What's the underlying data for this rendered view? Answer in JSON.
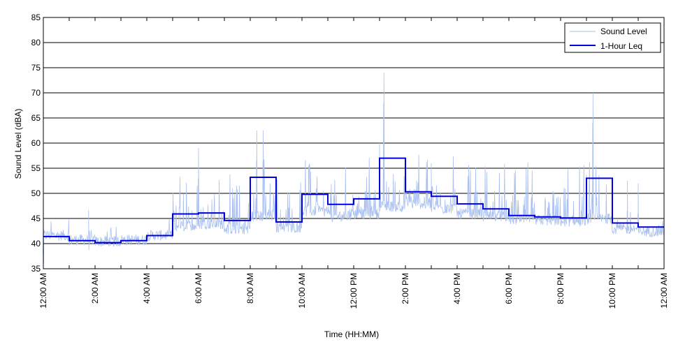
{
  "chart_data": {
    "type": "line",
    "xlabel": "Time (HH:MM)",
    "ylabel": "Sound Level (dBA)",
    "xlim": [
      "12:00 AM",
      "12:00 AM (next day)"
    ],
    "ylim": [
      35,
      85
    ],
    "y_ticks": [
      35,
      40,
      45,
      50,
      55,
      60,
      65,
      70,
      75,
      80,
      85
    ],
    "x_tick_labels": [
      "12:00 AM",
      "2:00 AM",
      "4:00 AM",
      "6:00 AM",
      "8:00 AM",
      "10:00 AM",
      "12:00 PM",
      "2:00 PM",
      "4:00 PM",
      "6:00 PM",
      "8:00 PM",
      "10:00 PM",
      "12:00 AM"
    ],
    "grid": "horizontal",
    "legend_position": "top-right",
    "legend": [
      "Sound Level",
      "1-Hour Leq"
    ],
    "colors": {
      "sound_level": "#a9c0f0",
      "leq": "#0000dd"
    },
    "series": [
      {
        "name": "1-Hour Leq",
        "x": [
          "12:00 AM",
          "1:00 AM",
          "2:00 AM",
          "3:00 AM",
          "4:00 AM",
          "5:00 AM",
          "6:00 AM",
          "7:00 AM",
          "8:00 AM",
          "9:00 AM",
          "10:00 AM",
          "11:00 AM",
          "12:00 PM",
          "1:00 PM",
          "2:00 PM",
          "3:00 PM",
          "4:00 PM",
          "5:00 PM",
          "6:00 PM",
          "7:00 PM",
          "8:00 PM",
          "9:00 PM",
          "10:00 PM",
          "11:00 PM"
        ],
        "values": [
          41.4,
          40.6,
          40.2,
          40.6,
          41.6,
          45.9,
          46.1,
          44.6,
          53.2,
          44.3,
          49.8,
          47.8,
          48.9,
          57.0,
          50.3,
          49.4,
          47.9,
          46.9,
          45.6,
          45.3,
          45.1,
          53.0,
          44.1,
          43.3
        ]
      },
      {
        "name": "Sound Level",
        "x": [
          "12:00 AM",
          "1:00 AM",
          "2:00 AM",
          "3:00 AM",
          "4:00 AM",
          "5:00 AM",
          "6:00 AM",
          "7:00 AM",
          "8:00 AM",
          "9:00 AM",
          "10:00 AM",
          "11:00 AM",
          "12:00 PM",
          "1:00 PM",
          "2:00 PM",
          "3:00 PM",
          "4:00 PM",
          "5:00 PM",
          "6:00 PM",
          "7:00 PM",
          "8:00 PM",
          "9:00 PM",
          "10:00 PM",
          "11:00 PM"
        ],
        "hourly_baseline": [
          41.2,
          40.3,
          40.0,
          40.3,
          41.2,
          43.0,
          43.5,
          42.5,
          45.0,
          42.8,
          46.0,
          45.0,
          45.5,
          47.0,
          47.5,
          46.5,
          45.5,
          45.0,
          44.3,
          44.2,
          44.0,
          44.5,
          42.5,
          42.0
        ],
        "peaks": [
          {
            "time": "12:00 AM",
            "value": 44.0
          },
          {
            "time": "1:45 AM",
            "value": 46.7
          },
          {
            "time": "6:00 AM",
            "value": 59.0
          },
          {
            "time": "8:15 AM",
            "value": 62.5
          },
          {
            "time": "8:30 AM",
            "value": 62.5
          },
          {
            "time": "10:15 AM",
            "value": 55.5
          },
          {
            "time": "1:10 PM",
            "value": 74.0
          },
          {
            "time": "1:00 PM",
            "value": 60.0
          },
          {
            "time": "3:00 PM",
            "value": 56.0
          },
          {
            "time": "9:15 PM",
            "value": 70.0
          },
          {
            "time": "10:35 PM",
            "value": 52.5
          },
          {
            "time": "11:00 PM",
            "value": 52.0
          }
        ]
      }
    ]
  }
}
